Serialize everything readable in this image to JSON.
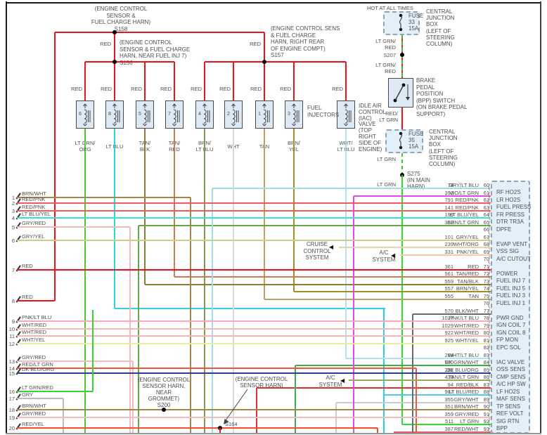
{
  "splices": {
    "s158": [
      "(ENGINE CONTROL",
      "SENSOR &",
      "FUEL CHARGE HARN)",
      "S158"
    ],
    "s156": [
      "(ENGINE CONTROL",
      "SENSOR & FUEL CHARGE",
      "HARN, NEAR FUEL INJ 7)",
      "S156"
    ],
    "s157": [
      "(ENGINE CONTROL SENS",
      "& FUEL CHARGE",
      "HARN, RIGHT REAR",
      "OF ENGINE COMPT)",
      "S157"
    ],
    "s207": "S207",
    "s275": [
      "S275",
      "(IN MAIN",
      "HARN)"
    ],
    "s200": [
      "(ENGINE CONTROL",
      "SENSOR HARN,",
      "NEAR",
      "GROMMET)",
      "S200"
    ],
    "s164_callout": [
      "(ENGINE CONTROL",
      "SENSOR HARN)"
    ],
    "s164": "S164"
  },
  "labels": {
    "red": "RED",
    "fuel_injectors": [
      "FUEL",
      "INJECTORS"
    ],
    "iac": [
      "IDLE AIR",
      "CONTROL",
      "(IAC)",
      "VALVE",
      "(TOP",
      "RIGHT",
      "SIDE OF",
      "ENGINE)"
    ],
    "hot_at_all_times": "HOT AT ALL TIMES",
    "cjb": [
      "CENTRAL",
      "JUNCTION",
      "BOX",
      "(LEFT OF",
      "STEERING",
      "COLUMN)"
    ],
    "fuse33": [
      "FUSE",
      "33",
      "15A"
    ],
    "fuse35": [
      "FUSE",
      "35",
      "15A"
    ],
    "bpp_switch": [
      "BRAKE",
      "PEDAL",
      "POSITION",
      "(BPP) SWITCH",
      "(ON BRAKE PEDAL",
      "SUPPORT)"
    ],
    "lt_grn_red": [
      "LT GRN/",
      "RED"
    ],
    "red_lt_grn": [
      "RED/",
      "LT GRN"
    ],
    "lt_grn": "LT GRN",
    "cruise": [
      "CRUISE",
      "CONTROL",
      "SYSTEM"
    ],
    "ac_system": [
      "A/C",
      "SYSTEM"
    ]
  },
  "injectors": [
    {
      "num": "6",
      "color": "LT GRN/ORG"
    },
    {
      "num": "8",
      "color": "LT BLU"
    },
    {
      "num": "5",
      "color": "TAN/BLK"
    },
    {
      "num": "7",
      "color": "TAN/RED"
    },
    {
      "num": "4",
      "color": "BRN/LT BLU"
    },
    {
      "num": "2",
      "color": "WHT"
    },
    {
      "num": "1",
      "color": "TAN"
    },
    {
      "num": "3",
      "color": "BRN/YEL"
    },
    {
      "num": "",
      "color": "WHT/LT BLU"
    }
  ],
  "left_rows": [
    {
      "n": "1",
      "color": "BRN/WHT"
    },
    {
      "n": "2",
      "color": "RED/PNK"
    },
    {
      "n": "3",
      "color": "RED/PNK"
    },
    {
      "n": "4",
      "color": "LT BLU/YEL"
    },
    {
      "n": "5",
      "color": "GRY/RED"
    },
    {
      "n": "6",
      "color": "GRY/YEL"
    },
    {
      "n": "7",
      "color": "RED"
    },
    {
      "n": "8",
      "color": "RED"
    },
    {
      "n": "9",
      "color": "PNK/LT BLU"
    },
    {
      "n": "10",
      "color": "WHT/RED"
    },
    {
      "n": "11",
      "color": "WHT/RED"
    },
    {
      "n": "12",
      "color": "WHT/YEL"
    },
    {
      "n": "13",
      "color": "GRY/RED"
    },
    {
      "n": "14",
      "color": "RED/LT GRN"
    },
    {
      "n": "15",
      "color": "DK BLU/ORG"
    },
    {
      "n": "16",
      "color": "LT GRN/RED"
    },
    {
      "n": "17",
      "color": "GRY"
    },
    {
      "n": "18",
      "color": "BRN/WHT"
    },
    {
      "n": "19",
      "color": "GRY/RED"
    },
    {
      "n": "20",
      "color": "RED/YEL"
    }
  ],
  "pcm_pins": [
    {
      "pin": "60",
      "circuit": "74",
      "color": "GRY/LT BLU",
      "name": "RF HO2S"
    },
    {
      "pin": "61",
      "circuit": "393",
      "color": "VIO/LT GRN",
      "name": "LR HO2S"
    },
    {
      "pin": "62",
      "circuit": "791",
      "color": "RED/PNK",
      "name": "FUEL PRESS"
    },
    {
      "pin": "63",
      "circuit": "141",
      "color": "RED/PNK",
      "name": "FR PRESS"
    },
    {
      "pin": "64",
      "circuit": "199",
      "color": "LT BLU/YEL",
      "name": "DTR TR3A"
    },
    {
      "pin": "65",
      "circuit": "352",
      "color": "BRN/LT GRN",
      "name": "DPFE"
    },
    {
      "pin": "66",
      "circuit": "",
      "color": "",
      "name": ""
    },
    {
      "pin": "67",
      "circuit": "101",
      "color": "GRY/YEL",
      "name": "EVAP VENT"
    },
    {
      "pin": "68",
      "circuit": "239",
      "color": "WHT/ORG",
      "name": "VSS SIG"
    },
    {
      "pin": "69",
      "circuit": "331",
      "color": "PNK/YEL",
      "name": "A/C CUTOUT"
    },
    {
      "pin": "70",
      "circuit": "",
      "color": "",
      "name": ""
    },
    {
      "pin": "71",
      "circuit": "361",
      "color": "RED",
      "name": "POWER"
    },
    {
      "pin": "72",
      "circuit": "561",
      "color": "TAN/RED",
      "name": "FUEL INJ 7"
    },
    {
      "pin": "73",
      "circuit": "559",
      "color": "TAN/BLK",
      "name": "FUEL INJ 5"
    },
    {
      "pin": "74",
      "circuit": "557",
      "color": "BRN/YEL",
      "name": "FUEL INJ 3"
    },
    {
      "pin": "75",
      "circuit": "555",
      "color": "TAN",
      "name": "FUEL INJ 1"
    },
    {
      "pin": "76",
      "circuit": "",
      "color": "",
      "name": ""
    },
    {
      "pin": "77",
      "circuit": "570",
      "color": "BLK/WHT",
      "name": "PWR GND"
    },
    {
      "pin": "78",
      "circuit": "1027",
      "color": "PNK/LT BLU",
      "name": "IGN COIL 7"
    },
    {
      "pin": "79",
      "circuit": "1029",
      "color": "WHT/RED",
      "name": "IGN COIL 8"
    },
    {
      "pin": "80",
      "circuit": "922",
      "color": "WHT/RED",
      "name": "FP MON"
    },
    {
      "pin": "81",
      "circuit": "925",
      "color": "WHT/YEL",
      "name": "EPC SOL"
    },
    {
      "pin": "82",
      "circuit": "",
      "color": "",
      "name": ""
    },
    {
      "pin": "83",
      "circuit": "264",
      "color": "WHT/LT BLU",
      "name": "IAC VALVE"
    },
    {
      "pin": "84",
      "circuit": "970",
      "color": "DK GRN/WHT",
      "name": "OSS SENS"
    },
    {
      "pin": "85",
      "circuit": "282",
      "color": "DK BLU/ORG",
      "name": "CMP SENS"
    },
    {
      "pin": "86",
      "circuit": "439",
      "color": "TAN/LT GRN",
      "name": "A/C HP SW"
    },
    {
      "pin": "87",
      "circuit": "94",
      "color": "RED/BLK",
      "name": "LF HO2S"
    },
    {
      "pin": "88",
      "circuit": "987",
      "color": "LT BLU/RED",
      "name": "MAF SENS"
    },
    {
      "pin": "89",
      "circuit": "355",
      "color": "GRY/WHT",
      "name": "TP SENS"
    },
    {
      "pin": "90",
      "circuit": "351",
      "color": "BRN/WHT",
      "name": "REF VOLT"
    },
    {
      "pin": "91",
      "circuit": "359",
      "color": "GRY/RED",
      "name": "SIG RTN"
    },
    {
      "pin": "92",
      "circuit": "511",
      "color": "LT GRN",
      "name": "BPP"
    },
    {
      "pin": "93",
      "circuit": "387",
      "color": "RED/WHT",
      "name": ""
    }
  ],
  "wire_colors": {
    "RED": "#e8161c",
    "LT GRN/ORG": "#55c03a",
    "LT BLU": "#2bd3e2",
    "TAN/BLK": "#8f7d33",
    "TAN/RED": "#cd7a55",
    "BRN/LT BLU": "#7d9a4e",
    "WHT": "#d9d9d9",
    "TAN": "#bda05f",
    "BRN/YEL": "#a18f1f",
    "WHT/LT BLU": "#b0e4ee",
    "BRN/WHT": "#a5854d",
    "RED/PNK": "#f05a60",
    "LT BLU/YEL": "#3fe0cf",
    "GRY/RED": "#f2bcbc",
    "GRY/YEL": "#cdcd88",
    "PNK/LT BLU": "#f7aab4",
    "WHT/RED": "#ffb2b2",
    "WHT/YEL": "#ecec9f",
    "RED/LT GRN": "#f2553a",
    "DK BLU/ORG": "#2a3f8f",
    "LT GRN/RED": "#35d435",
    "GRY": "#bbbbbb",
    "RED/YEL": "#f4502c",
    "GRY/LT BLU": "#9fdde8",
    "VIO/LT GRN": "#e04ae0",
    "BRN/LT GRN": "#63a844",
    "WHT/ORG": "#ead0a6",
    "PNK/YEL": "#ffc9a4",
    "BLK/WHT": "#6a6a6a",
    "DK GRN/WHT": "#3bb04a",
    "TAN/LT GRN": "#8fae57",
    "RED/BLK": "#e03030",
    "LT BLU/RED": "#4fc9e8",
    "GRY/WHT": "#cccccc",
    "LT GRN": "#2ee02e",
    "RED/WHT": "#ef5858"
  }
}
